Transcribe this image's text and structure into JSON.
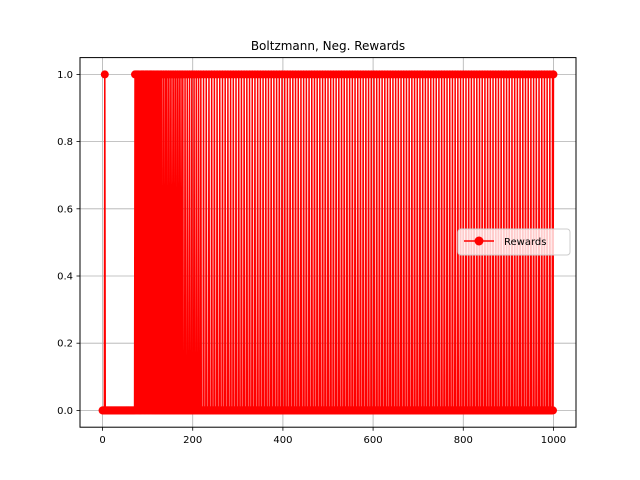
{
  "chart_data": {
    "type": "line",
    "title": "Boltzmann, Neg. Rewards",
    "xlabel": "",
    "ylabel": "",
    "xlim": [
      -50,
      1050
    ],
    "ylim": [
      -0.05,
      1.05
    ],
    "xticks": [
      0,
      200,
      400,
      600,
      800,
      1000
    ],
    "xtick_labels": [
      "0",
      "200",
      "400",
      "600",
      "800",
      "1000"
    ],
    "yticks": [
      0.0,
      0.2,
      0.4,
      0.6,
      0.8,
      1.0
    ],
    "ytick_labels": [
      "0.0",
      "0.2",
      "0.4",
      "0.6",
      "0.8",
      "1.0"
    ],
    "grid": true,
    "legend_position": "center-right",
    "series": [
      {
        "name": "Rewards",
        "color": "#ff0000",
        "marker": "circle",
        "episodes": 1001,
        "value_set": [
          0,
          1
        ],
        "reward_one_at": [
          5,
          72,
          74,
          76,
          78,
          80,
          83,
          86,
          88,
          90,
          92,
          95,
          97,
          99,
          101,
          104,
          106,
          108,
          110,
          113,
          116,
          119,
          122,
          125,
          128,
          131,
          135,
          139,
          142,
          146,
          150,
          154,
          158,
          162,
          166,
          170,
          174,
          178,
          183,
          188,
          193,
          198,
          203,
          208,
          213,
          218,
          224,
          230,
          236,
          242,
          248,
          254,
          260,
          266,
          272,
          278,
          284,
          290,
          296,
          302,
          308,
          314,
          320,
          326,
          332,
          338,
          344,
          350,
          356,
          362,
          368,
          374,
          380,
          386,
          392,
          398,
          404,
          410,
          416,
          422,
          428,
          434,
          440,
          446,
          452,
          458,
          464,
          470,
          476,
          482,
          488,
          494,
          500,
          506,
          512,
          518,
          524,
          530,
          536,
          542,
          548,
          554,
          560,
          566,
          572,
          578,
          584,
          590,
          596,
          602,
          608,
          614,
          620,
          626,
          632,
          638,
          644,
          650,
          656,
          662,
          668,
          674,
          680,
          686,
          692,
          698,
          704,
          710,
          716,
          722,
          728,
          734,
          740,
          746,
          752,
          758,
          764,
          770,
          776,
          782,
          788,
          794,
          800,
          806,
          812,
          818,
          824,
          830,
          836,
          842,
          848,
          854,
          860,
          866,
          872,
          878,
          884,
          890,
          896,
          902,
          908,
          914,
          920,
          926,
          932,
          938,
          944,
          950,
          956,
          962,
          968,
          974,
          980,
          986,
          992,
          998,
          1000
        ]
      }
    ]
  }
}
